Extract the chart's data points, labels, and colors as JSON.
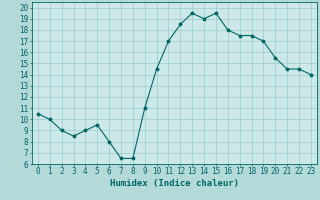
{
  "x": [
    0,
    1,
    2,
    3,
    4,
    5,
    6,
    7,
    8,
    9,
    10,
    11,
    12,
    13,
    14,
    15,
    16,
    17,
    18,
    19,
    20,
    21,
    22,
    23
  ],
  "y": [
    10.5,
    10.0,
    9.0,
    8.5,
    9.0,
    9.5,
    8.0,
    6.5,
    6.5,
    11.0,
    14.5,
    17.0,
    18.5,
    19.5,
    19.0,
    19.5,
    18.0,
    17.5,
    17.5,
    17.0,
    15.5,
    14.5,
    14.5,
    14.0
  ],
  "line_color": "#006666",
  "marker": "*",
  "bg_color": "#b3d9d9",
  "plot_bg_color": "#cce8e8",
  "grid_color": "#99cccc",
  "xlabel": "Humidex (Indice chaleur)",
  "xlim": [
    -0.5,
    23.5
  ],
  "ylim": [
    6,
    20.5
  ],
  "yticks": [
    6,
    7,
    8,
    9,
    10,
    11,
    12,
    13,
    14,
    15,
    16,
    17,
    18,
    19,
    20
  ],
  "xticks": [
    0,
    1,
    2,
    3,
    4,
    5,
    6,
    7,
    8,
    9,
    10,
    11,
    12,
    13,
    14,
    15,
    16,
    17,
    18,
    19,
    20,
    21,
    22,
    23
  ],
  "tick_fontsize": 5.5,
  "label_fontsize": 6.5
}
